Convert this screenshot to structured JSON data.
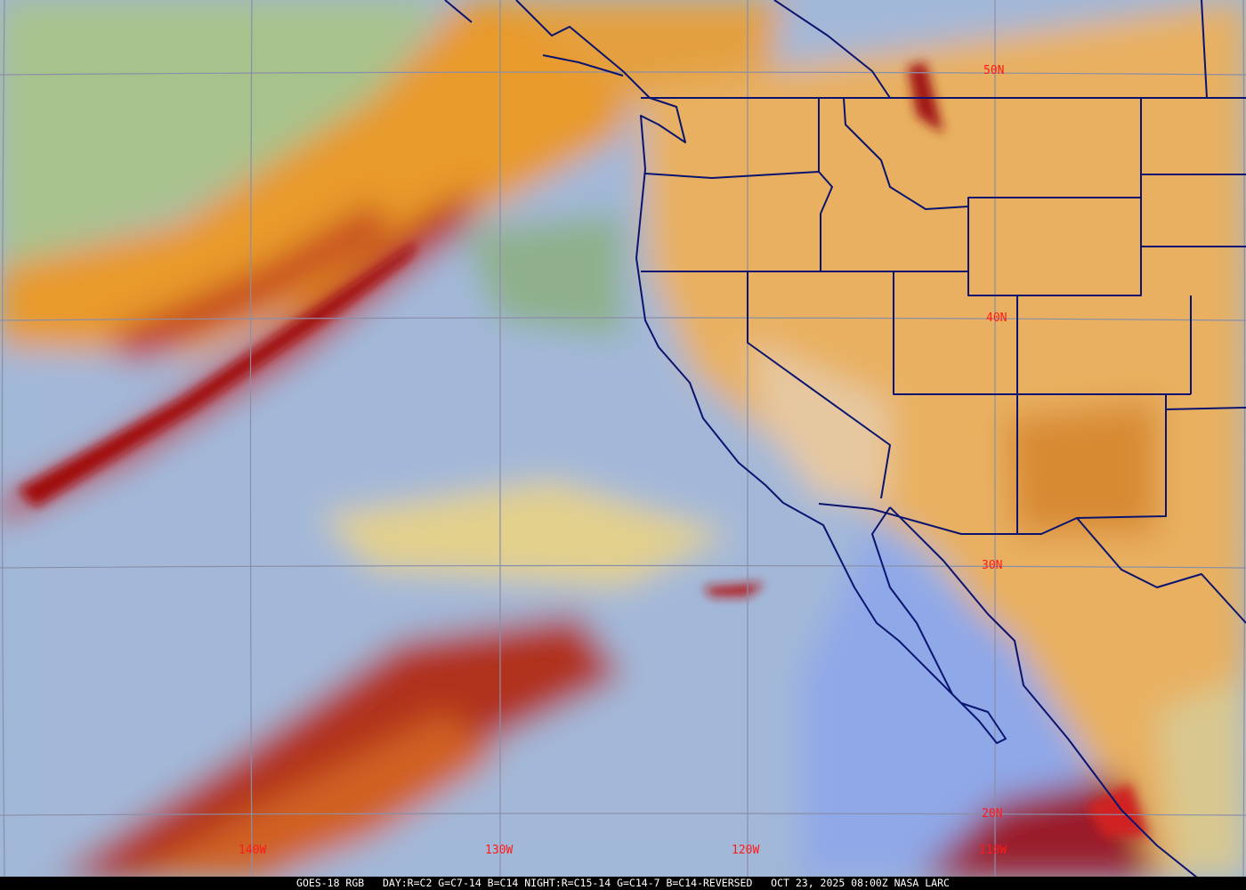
{
  "image": {
    "caption": "GOES-18 RGB   DAY:R=C2 G=C7-14 B=C14 NIGHT:R=C15-14 G=C14-7 B=C14-REVERSED   OCT 23, 2025 08:00Z NASA LARC",
    "latitude_labels": [
      "50N",
      "40N",
      "30N",
      "20N"
    ],
    "longitude_labels": [
      "140W",
      "130W",
      "120W",
      "110W"
    ],
    "colors": {
      "label": "#ff1a1a",
      "grid": "#8a8fa8",
      "boundaries": "#0a1470",
      "ocean_clear": "#9fb6d6",
      "high_cloud": "#e89a2a",
      "cold_cloud": "#b01818",
      "land": "#e8b060"
    }
  }
}
